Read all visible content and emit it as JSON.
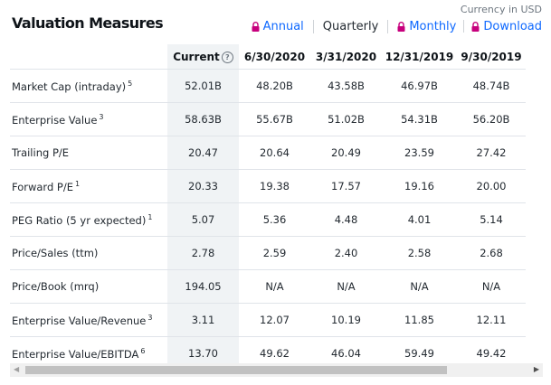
{
  "title": "Valuation Measures",
  "currency": "Currency in USD",
  "controls": {
    "annual": "Annual",
    "quarterly": "Quarterly",
    "monthly": "Monthly",
    "download": "Download"
  },
  "headers": [
    "Current",
    "6/30/2020",
    "3/31/2020",
    "12/31/2019",
    "9/30/2019"
  ],
  "rows": [
    {
      "label": "Market Cap (intraday)",
      "sup": "5",
      "values": [
        "52.01B",
        "48.20B",
        "43.58B",
        "46.97B",
        "48.74B"
      ]
    },
    {
      "label": "Enterprise Value",
      "sup": "3",
      "values": [
        "58.63B",
        "55.67B",
        "51.02B",
        "54.31B",
        "56.20B"
      ]
    },
    {
      "label": "Trailing P/E",
      "sup": "",
      "values": [
        "20.47",
        "20.64",
        "20.49",
        "23.59",
        "27.42"
      ]
    },
    {
      "label": "Forward P/E",
      "sup": "1",
      "values": [
        "20.33",
        "19.38",
        "17.57",
        "19.16",
        "20.00"
      ]
    },
    {
      "label": "PEG Ratio (5 yr expected)",
      "sup": "1",
      "values": [
        "5.07",
        "5.36",
        "4.48",
        "4.01",
        "5.14"
      ]
    },
    {
      "label": "Price/Sales (ttm)",
      "sup": "",
      "values": [
        "2.78",
        "2.59",
        "2.40",
        "2.58",
        "2.68"
      ]
    },
    {
      "label": "Price/Book (mrq)",
      "sup": "",
      "values": [
        "194.05",
        "N/A",
        "N/A",
        "N/A",
        "N/A"
      ]
    },
    {
      "label": "Enterprise Value/Revenue",
      "sup": "3",
      "values": [
        "3.11",
        "12.07",
        "10.19",
        "11.85",
        "12.11"
      ]
    },
    {
      "label": "Enterprise Value/EBITDA",
      "sup": "6",
      "values": [
        "13.70",
        "49.62",
        "46.04",
        "59.49",
        "49.42"
      ]
    }
  ],
  "colors": {
    "link": "#0f69ff",
    "lock": "#c7007d",
    "current_bg": "#f0f3f5"
  }
}
